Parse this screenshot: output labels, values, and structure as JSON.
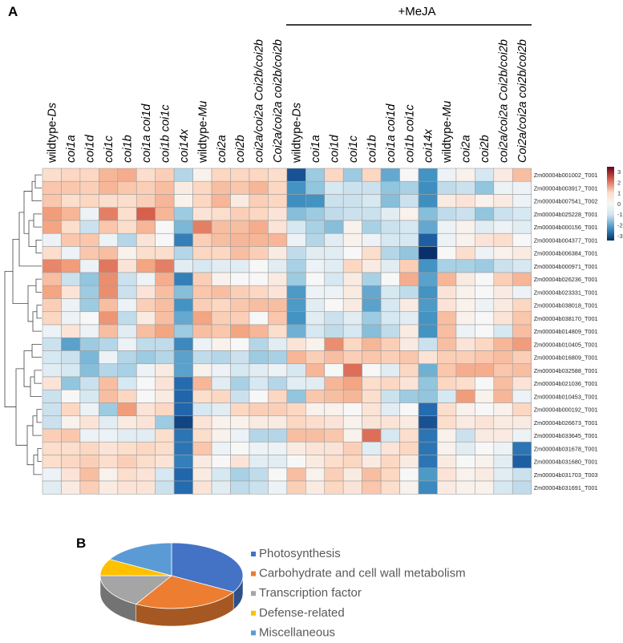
{
  "panel_labels": {
    "a": "A",
    "b": "B"
  },
  "chart_data": [
    {
      "type": "heatmap",
      "title": "",
      "group_label": "+MeJA",
      "columns": [
        {
          "plain": "wildtype-",
          "italic": "Ds"
        },
        {
          "plain": "",
          "italic": "coi1a"
        },
        {
          "plain": "",
          "italic": "coi1d"
        },
        {
          "plain": "",
          "italic": "coi1c"
        },
        {
          "plain": "",
          "italic": "coi1b"
        },
        {
          "plain": "",
          "italic": "coi1a coi1d"
        },
        {
          "plain": "",
          "italic": "coi1b coi1c"
        },
        {
          "plain": "",
          "italic": "coi14x"
        },
        {
          "plain": "wildtype-",
          "italic": "Mu"
        },
        {
          "plain": "",
          "italic": "coi2a"
        },
        {
          "plain": "",
          "italic": "coi2b"
        },
        {
          "plain": "",
          "italic": "coi2a/coi2a Coi2b/coi2b"
        },
        {
          "plain": "",
          "italic": "Coi2a/coi2a coi2b/coi2b"
        },
        {
          "plain": "wildtype-",
          "italic": "Ds"
        },
        {
          "plain": "",
          "italic": "coi1a"
        },
        {
          "plain": "",
          "italic": "coi1d"
        },
        {
          "plain": "",
          "italic": "coi1c"
        },
        {
          "plain": "",
          "italic": "coi1b"
        },
        {
          "plain": "",
          "italic": "coi1a coi1d"
        },
        {
          "plain": "",
          "italic": "coi1b coi1c"
        },
        {
          "plain": "",
          "italic": "coi14x"
        },
        {
          "plain": "wildtype-",
          "italic": "Mu"
        },
        {
          "plain": "",
          "italic": "coi2a"
        },
        {
          "plain": "",
          "italic": "coi2b"
        },
        {
          "plain": "",
          "italic": "coi2a/coi2a Coi2b/coi2b"
        },
        {
          "plain": "",
          "italic": "Coi2a/coi2a coi2b/coi2b"
        }
      ],
      "rows": [
        "Zm00004b001002_T001",
        "Zm00004b003917_T001",
        "Zm00004b007541_T002",
        "Zm00004b025228_T001",
        "Zm00004b000156_T001",
        "Zm00004b004377_T001",
        "Zm00004b006384_T001",
        "Zm00004b000971_T001",
        "Zm00004b026236_T001",
        "Zm00004b023331_T001",
        "Zm00004b038018_T001",
        "Zm00004b038170_T001",
        "Zm00004b014809_T001",
        "Zm00004b010405_T001",
        "Zm00004b016809_T001",
        "Zm00004b032588_T001",
        "Zm00004b021036_T001",
        "Zm00004b010453_T001",
        "Zm00004b000192_T001",
        "Zm00004b026673_T001",
        "Zm00004b033645_T001",
        "Zm00004b031678_T001",
        "Zm00004b031680_T001",
        "Zm00004b031703_T003",
        "Zm00004b031691_T001"
      ],
      "values": [
        [
          0.4,
          0.5,
          0.5,
          0.9,
          1.0,
          0.4,
          0.6,
          -0.6,
          0.1,
          0.5,
          0.5,
          0.5,
          0.4,
          -2.8,
          -0.8,
          0.5,
          -0.8,
          0.5,
          -1.3,
          0.0,
          -1.6,
          -0.1,
          0.1,
          -0.3,
          0.2,
          0.8
        ],
        [
          0.7,
          0.7,
          0.6,
          0.9,
          0.7,
          0.6,
          0.8,
          0.2,
          0.5,
          0.8,
          0.7,
          0.9,
          0.5,
          -1.6,
          -0.9,
          -0.3,
          -0.4,
          -0.4,
          -0.9,
          -0.7,
          -1.7,
          -0.5,
          -0.4,
          -0.9,
          -0.1,
          -0.1
        ],
        [
          0.7,
          0.4,
          0.5,
          0.4,
          0.4,
          0.6,
          0.9,
          0.1,
          0.5,
          0.9,
          0.2,
          0.6,
          0.5,
          -1.7,
          -1.6,
          -0.4,
          -0.4,
          -0.3,
          -1.0,
          -0.4,
          -1.7,
          0.2,
          0.3,
          0.1,
          0.2,
          -0.1
        ],
        [
          1.2,
          0.9,
          -0.1,
          1.6,
          0.4,
          2.0,
          0.9,
          -0.8,
          0.3,
          0.4,
          0.6,
          0.5,
          0.3,
          -1.0,
          -0.8,
          -0.5,
          -0.4,
          -0.4,
          -0.2,
          0.1,
          -1.0,
          -0.5,
          -0.4,
          -0.9,
          -0.4,
          -0.3
        ],
        [
          1.1,
          0.4,
          -0.4,
          0.7,
          0.4,
          0.9,
          0.0,
          -1.1,
          1.6,
          0.8,
          0.8,
          1.0,
          0.3,
          -0.3,
          -0.7,
          -1.0,
          0.1,
          -0.7,
          -0.4,
          -0.3,
          -1.3,
          -0.1,
          0.1,
          -0.2,
          -0.1,
          -0.2
        ],
        [
          -0.1,
          0.7,
          0.7,
          -0.1,
          -0.6,
          0.3,
          0.0,
          -2.0,
          0.6,
          0.8,
          0.9,
          0.9,
          0.9,
          -0.1,
          -0.6,
          -0.2,
          0.1,
          -0.1,
          -0.3,
          -0.3,
          -2.6,
          -0.1,
          0.1,
          0.3,
          0.4,
          0.0
        ],
        [
          0.4,
          -0.1,
          0.7,
          0.8,
          0.1,
          0.4,
          0.4,
          -0.6,
          0.5,
          0.5,
          0.8,
          0.6,
          0.2,
          -0.5,
          -0.2,
          -0.2,
          0.0,
          0.4,
          -0.6,
          -0.9,
          -3.3,
          0.0,
          0.4,
          -0.1,
          0.1,
          0.2
        ],
        [
          1.5,
          1.2,
          -0.1,
          1.7,
          0.3,
          1.1,
          1.6,
          -0.2,
          -0.3,
          -0.2,
          -0.2,
          0.0,
          -0.2,
          -0.7,
          -0.1,
          -0.2,
          0.5,
          0.2,
          -0.2,
          0.6,
          -1.6,
          -0.7,
          -0.7,
          -0.8,
          -0.4,
          -0.3
        ],
        [
          0.8,
          -0.4,
          -0.9,
          1.4,
          -0.4,
          -0.1,
          1.0,
          -2.0,
          0.6,
          0.1,
          0.0,
          0.0,
          0.2,
          -0.8,
          0.0,
          -0.3,
          0.2,
          -0.7,
          0.0,
          1.0,
          -1.4,
          0.9,
          0.2,
          0.0,
          0.6,
          0.9
        ],
        [
          1.1,
          0.3,
          -0.8,
          1.4,
          -0.4,
          0.3,
          0.8,
          -1.0,
          0.7,
          0.8,
          0.6,
          0.5,
          0.3,
          -1.5,
          -0.1,
          -0.1,
          0.2,
          -1.3,
          -0.3,
          -0.5,
          -1.6,
          0.3,
          0.1,
          0.0,
          0.2,
          -0.1
        ],
        [
          0.6,
          -0.1,
          -0.8,
          0.8,
          -0.1,
          0.6,
          0.8,
          -1.6,
          0.6,
          0.5,
          0.7,
          0.8,
          0.8,
          -1.5,
          -0.2,
          0.0,
          0.2,
          -1.4,
          -0.3,
          0.2,
          -1.5,
          0.3,
          0.1,
          -0.1,
          0.2,
          0.5
        ],
        [
          0.5,
          -0.1,
          0.0,
          1.3,
          -0.5,
          0.2,
          0.8,
          -1.3,
          1.1,
          0.6,
          0.6,
          0.0,
          0.7,
          -1.6,
          -0.2,
          -0.4,
          -0.2,
          -0.8,
          -0.3,
          -0.2,
          -1.6,
          0.8,
          0.1,
          0.0,
          0.3,
          0.7
        ],
        [
          -0.1,
          0.3,
          -0.1,
          0.8,
          -0.2,
          0.8,
          1.1,
          -0.8,
          0.8,
          0.7,
          1.1,
          0.9,
          0.4,
          -1.2,
          -0.3,
          -0.5,
          -0.3,
          -1.0,
          -0.5,
          0.2,
          -1.6,
          0.8,
          -0.1,
          0.0,
          -0.3,
          0.8
        ],
        [
          -0.4,
          -1.4,
          -0.8,
          -0.6,
          -0.1,
          -0.5,
          -0.5,
          -1.8,
          -0.1,
          0.1,
          0.0,
          -0.6,
          -0.2,
          0.3,
          0.1,
          1.4,
          0.5,
          0.9,
          0.6,
          0.2,
          -0.4,
          0.8,
          0.3,
          0.5,
          0.9,
          1.2
        ],
        [
          -0.3,
          -0.4,
          -1.1,
          -0.1,
          -0.6,
          -0.8,
          -0.6,
          -1.4,
          -0.5,
          -0.6,
          -0.4,
          -0.8,
          -0.7,
          0.9,
          0.6,
          0.8,
          0.6,
          0.7,
          0.6,
          0.7,
          0.3,
          0.6,
          0.6,
          0.7,
          0.8,
          0.6
        ],
        [
          -0.2,
          -0.3,
          -1.0,
          -0.6,
          -0.7,
          -0.1,
          0.2,
          -1.4,
          0.1,
          -0.1,
          -0.3,
          -0.2,
          -0.1,
          -0.3,
          0.9,
          0.0,
          1.8,
          0.0,
          -0.2,
          0.5,
          -1.2,
          0.7,
          1.0,
          1.0,
          0.7,
          0.8
        ],
        [
          0.3,
          -0.9,
          -0.4,
          0.8,
          -0.3,
          0.0,
          0.3,
          -2.4,
          0.9,
          -0.2,
          -0.7,
          -0.3,
          -0.6,
          -0.2,
          -0.2,
          0.9,
          1.1,
          0.4,
          0.5,
          0.3,
          -0.9,
          0.5,
          0.4,
          0.0,
          0.8,
          0.3
        ],
        [
          -0.4,
          0.0,
          -0.3,
          0.8,
          0.5,
          0.0,
          0.2,
          -2.5,
          0.4,
          0.5,
          -0.4,
          0.0,
          0.5,
          -0.9,
          0.7,
          0.8,
          0.9,
          0.4,
          -0.4,
          -0.8,
          -0.9,
          -0.3,
          1.2,
          0.1,
          0.9,
          -0.1
        ],
        [
          -0.4,
          0.5,
          -0.1,
          -0.8,
          1.2,
          0.3,
          0.5,
          -2.5,
          -0.3,
          -0.2,
          0.5,
          0.6,
          0.6,
          0.5,
          0.1,
          0.1,
          0.0,
          0.3,
          -0.2,
          0.0,
          -2.4,
          0.4,
          0.1,
          0.0,
          0.1,
          0.5
        ],
        [
          -0.4,
          0.1,
          0.3,
          -0.2,
          0.2,
          0.3,
          -0.8,
          -3.0,
          0.3,
          0.1,
          0.1,
          0.2,
          0.2,
          0.5,
          0.4,
          0.3,
          0.1,
          0.3,
          0.3,
          0.2,
          -2.8,
          0.4,
          0.2,
          0.3,
          0.2,
          0.2
        ],
        [
          0.6,
          0.7,
          -0.1,
          -0.1,
          -0.2,
          -0.2,
          0.4,
          -2.2,
          0.4,
          0.1,
          -0.1,
          -0.6,
          -0.6,
          0.8,
          0.8,
          0.7,
          0.1,
          1.8,
          -0.3,
          0.4,
          -2.2,
          0.1,
          -0.4,
          0.2,
          0.2,
          -0.1
        ],
        [
          0.4,
          0.4,
          0.5,
          0.3,
          0.4,
          0.5,
          0.4,
          -2.2,
          0.7,
          -0.1,
          0.0,
          -0.1,
          -0.1,
          0.2,
          0.3,
          0.3,
          0.6,
          -0.2,
          0.3,
          0.5,
          -2.2,
          0.1,
          -0.2,
          0.0,
          -0.1,
          -2.2
        ],
        [
          0.4,
          0.5,
          0.6,
          0.4,
          0.6,
          0.4,
          0.3,
          -2.0,
          0.2,
          0.0,
          0.3,
          -0.2,
          -0.2,
          0.0,
          0.2,
          0.4,
          0.5,
          0.2,
          0.5,
          0.2,
          -2.2,
          0.2,
          0.0,
          0.1,
          -0.2,
          -2.6
        ],
        [
          -0.1,
          0.3,
          0.8,
          0.1,
          0.4,
          0.3,
          -0.3,
          -2.5,
          0.2,
          -0.3,
          -0.7,
          -0.5,
          0.0,
          0.8,
          0.1,
          0.6,
          0.2,
          0.8,
          0.5,
          0.0,
          -1.5,
          0.3,
          0.1,
          0.2,
          -0.2,
          -0.4
        ],
        [
          -0.2,
          0.2,
          0.6,
          0.2,
          0.3,
          0.3,
          -0.4,
          -2.4,
          0.3,
          -0.2,
          -0.5,
          -0.4,
          -0.1,
          0.6,
          0.2,
          0.5,
          0.3,
          0.7,
          0.4,
          0.1,
          -1.8,
          0.2,
          0.1,
          0.1,
          -0.3,
          -0.5
        ]
      ],
      "color_scale": {
        "min": -3.3,
        "max": 3.3,
        "ticks": [
          "3",
          "2",
          "1",
          "0",
          "-1",
          "-2",
          "-3"
        ],
        "low": "#08306b",
        "mid": "#f7f7f7",
        "high": "#67001f"
      }
    },
    {
      "type": "pie",
      "style": "3d",
      "labels": [
        "Photosynthesis",
        "Carbohydrate and cell wall metabolism",
        "Transcription factor",
        "Defense-related",
        "Miscellaneous"
      ],
      "values": [
        33.3,
        25.0,
        16.7,
        8.3,
        16.7
      ],
      "colors": [
        "#4472c4",
        "#ed7d31",
        "#a5a5a5",
        "#ffc000",
        "#5b9bd5"
      ],
      "legend": "right"
    }
  ]
}
